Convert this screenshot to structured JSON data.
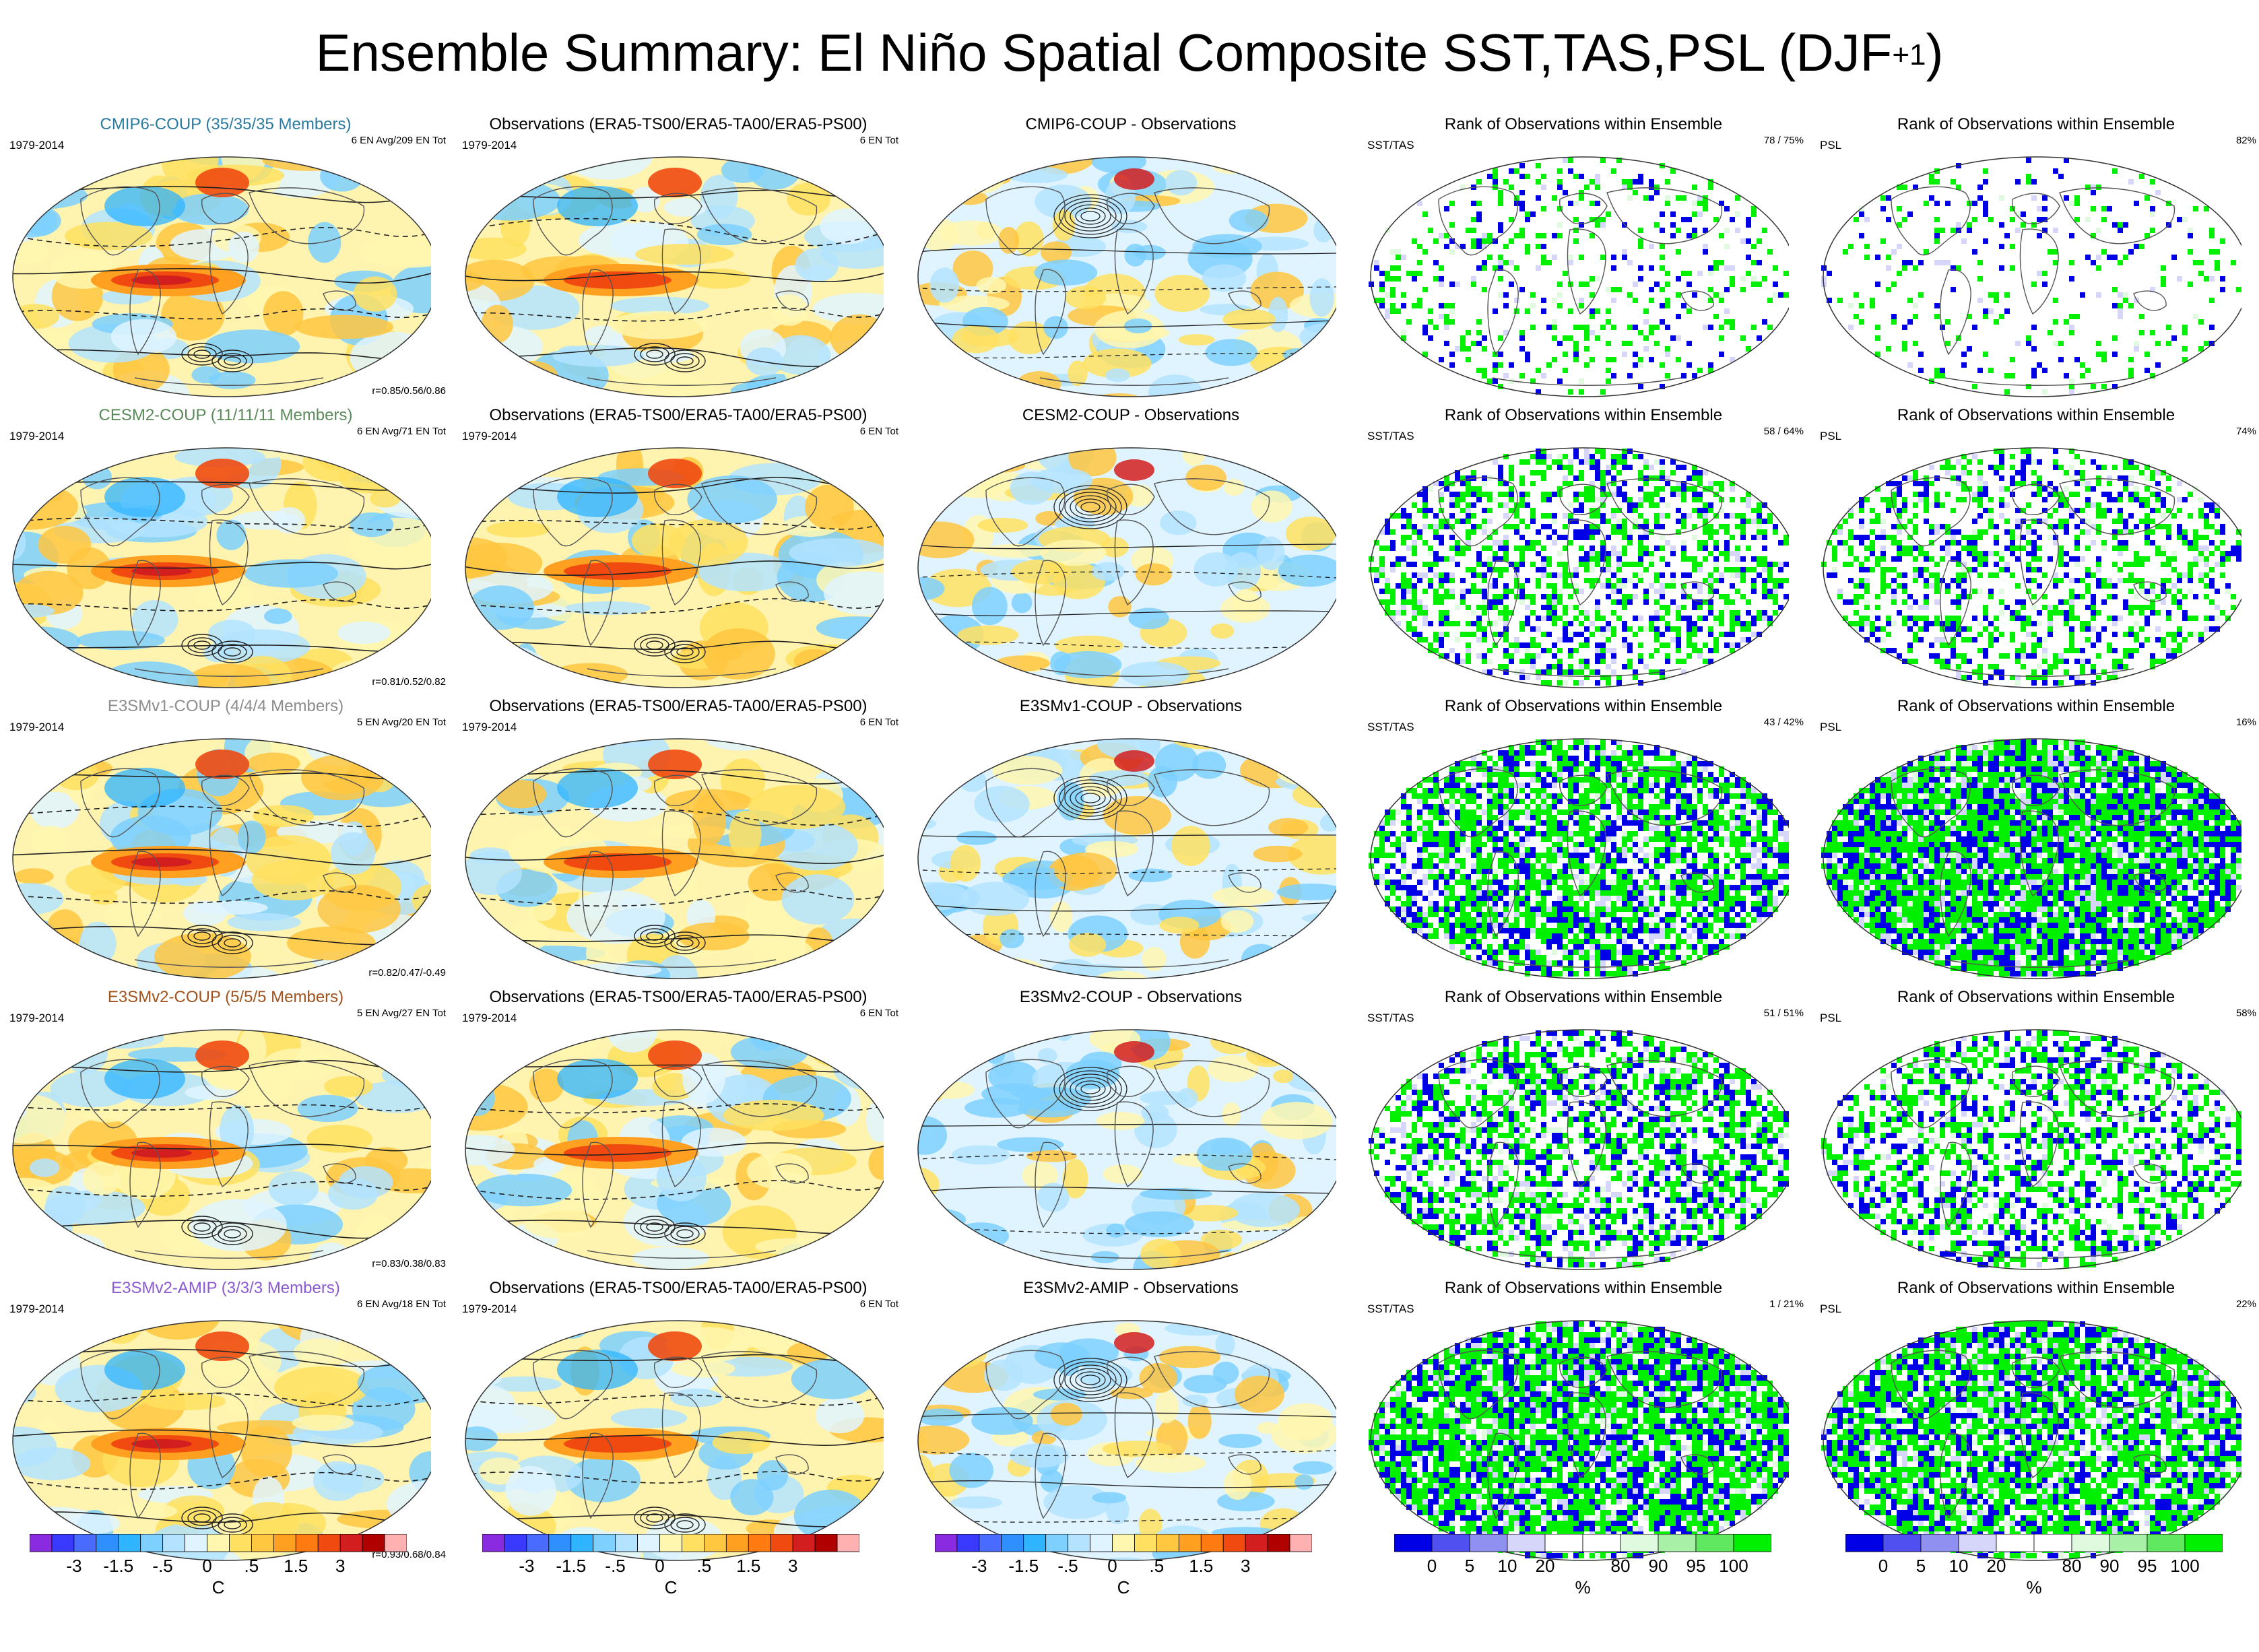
{
  "title": {
    "main": "Ensemble Summary: El Niño Spatial Composite SST,TAS,PSL (DJF",
    "sup": "+1",
    "close": ")"
  },
  "colors": {
    "coup_cmip6": "#2a7aa0",
    "coup_cesm2": "#5a8a5a",
    "coup_e3smv1": "#8c8c8c",
    "coup_e3smv2": "#a0521c",
    "amip_e3smv2": "#8a5ad2",
    "rank_blue": "#0000e6",
    "rank_green": "#00f000"
  },
  "rows": [
    {
      "model": {
        "title": "CMIP6-COUP (35/35/35 Members)",
        "color": "#2a7aa0",
        "period": "1979-2014",
        "count": "6 EN Avg/209 EN Tot",
        "corr": "r=0.85/0.56/0.86"
      },
      "obs": {
        "title": "Observations (ERA5-TS00/ERA5-TA00/ERA5-PS00)",
        "period": "1979-2014",
        "count": "6 EN Tot"
      },
      "diff": {
        "title": "CMIP6-COUP - Observations"
      },
      "rank1": {
        "title": "Rank of Observations within Ensemble",
        "var": "SST/TAS",
        "pct": "78 /  75%",
        "cover": 0.18
      },
      "rank2": {
        "title": "Rank of Observations within Ensemble",
        "var": "PSL",
        "pct": "82%",
        "cover": 0.12
      }
    },
    {
      "model": {
        "title": "CESM2-COUP (11/11/11 Members)",
        "color": "#5a8a5a",
        "period": "1979-2014",
        "count": "6 EN Avg/71 EN Tot",
        "corr": "r=0.81/0.52/0.82"
      },
      "obs": {
        "title": "Observations (ERA5-TS00/ERA5-TA00/ERA5-PS00)",
        "period": "1979-2014",
        "count": "6 EN Tot"
      },
      "diff": {
        "title": "CESM2-COUP - Observations"
      },
      "rank1": {
        "title": "Rank of Observations within Ensemble",
        "var": "SST/TAS",
        "pct": "58 /  64%",
        "cover": 0.45
      },
      "rank2": {
        "title": "Rank of Observations within Ensemble",
        "var": "PSL",
        "pct": "74%",
        "cover": 0.4
      }
    },
    {
      "model": {
        "title": "E3SMv1-COUP (4/4/4 Members)",
        "color": "#8c8c8c",
        "period": "1979-2014",
        "count": "5 EN Avg/20 EN Tot",
        "corr": "r=0.82/0.47/-0.49"
      },
      "obs": {
        "title": "Observations (ERA5-TS00/ERA5-TA00/ERA5-PS00)",
        "period": "1979-2014",
        "count": "6 EN Tot"
      },
      "diff": {
        "title": "E3SMv1-COUP - Observations"
      },
      "rank1": {
        "title": "Rank of Observations within Ensemble",
        "var": "SST/TAS",
        "pct": "43 /  42%",
        "cover": 0.7
      },
      "rank2": {
        "title": "Rank of Observations within Ensemble",
        "var": "PSL",
        "pct": "16%",
        "cover": 0.92
      }
    },
    {
      "model": {
        "title": "E3SMv2-COUP (5/5/5 Members)",
        "color": "#a0521c",
        "period": "1979-2014",
        "count": "5 EN Avg/27 EN Tot",
        "corr": "r=0.83/0.38/0.83"
      },
      "obs": {
        "title": "Observations (ERA5-TS00/ERA5-TA00/ERA5-PS00)",
        "period": "1979-2014",
        "count": "6 EN Tot"
      },
      "diff": {
        "title": "E3SMv2-COUP - Observations"
      },
      "rank1": {
        "title": "Rank of Observations within Ensemble",
        "var": "SST/TAS",
        "pct": "51 /  51%",
        "cover": 0.55
      },
      "rank2": {
        "title": "Rank of Observations within Ensemble",
        "var": "PSL",
        "pct": "58%",
        "cover": 0.5
      }
    },
    {
      "model": {
        "title": "E3SMv2-AMIP (3/3/3 Members)",
        "color": "#8a5ad2",
        "period": "1979-2014",
        "count": "6 EN Avg/18 EN Tot",
        "corr": "r=0.93/0.68/0.84"
      },
      "obs": {
        "title": "Observations (ERA5-TS00/ERA5-TA00/ERA5-PS00)",
        "period": "1979-2014",
        "count": "6 EN Tot"
      },
      "diff": {
        "title": "E3SMv2-AMIP - Observations"
      },
      "rank1": {
        "title": "Rank of Observations within Ensemble",
        "var": "SST/TAS",
        "pct": "1 /  21%",
        "cover": 0.85
      },
      "rank2": {
        "title": "Rank of Observations within Ensemble",
        "var": "PSL",
        "pct": "22%",
        "cover": 0.8
      }
    }
  ],
  "colorbar_temp": {
    "labels": [
      "-3",
      "-1.5",
      "-.5",
      "0",
      ".5",
      "1.5",
      "3"
    ],
    "unit": "C",
    "colors": [
      "#8a2be2",
      "#3a3aff",
      "#4a6bff",
      "#2f8fff",
      "#2fb4ff",
      "#7dd0ff",
      "#b3e3ff",
      "#e0f4ff",
      "#fff7b0",
      "#ffe060",
      "#ffc640",
      "#ffa020",
      "#ff7a10",
      "#f04a10",
      "#d21e1e",
      "#b00000",
      "#ffb0b0"
    ]
  },
  "colorbar_rank": {
    "labels": [
      "0",
      "5",
      "10",
      "20",
      "80",
      "90",
      "95",
      "100"
    ],
    "unit": "%",
    "colors": [
      "#0000e6",
      "#5050f0",
      "#9090f0",
      "#d6d6fa",
      "#ffffff",
      "#ffffff",
      "#e0fae0",
      "#a8f0a8",
      "#60e860",
      "#00f000"
    ]
  }
}
